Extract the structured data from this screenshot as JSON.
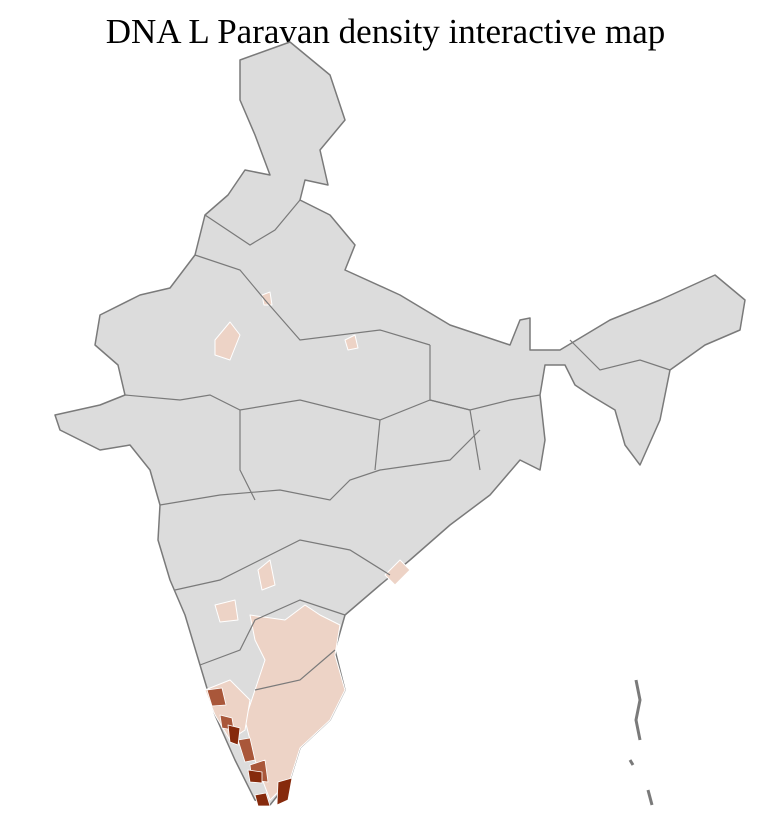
{
  "title": "DNA L Paravan density interactive map",
  "colors": {
    "background": "#ffffff",
    "land_no_data": "#dcdcdc",
    "district_border": "#ffffff",
    "state_border": "#7a7a7a",
    "density_low": "#edd3c6",
    "density_medium": "#a9573a",
    "density_high": "#862a0c"
  }
}
